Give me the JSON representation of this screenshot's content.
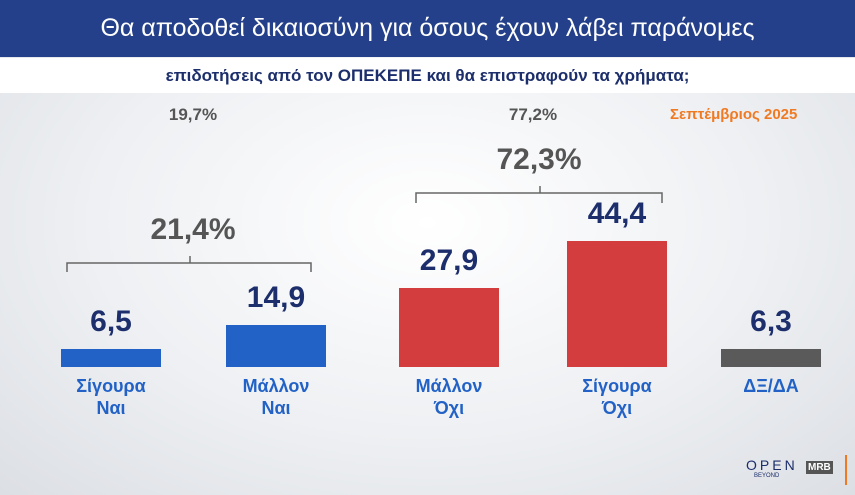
{
  "chart_data": {
    "type": "bar",
    "title": "Θα αποδοθεί δικαιοσύνη για όσους έχουν λάβει παράνομες",
    "subtitle": "επιδοτήσεις από τον ΟΠΕΚΕΠΕ και θα επιστραφούν τα χρήματα;",
    "date": "Σεπτέμβριος 2025",
    "categories": [
      "Σίγουρα Ναι",
      "Μάλλον Ναι",
      "Μάλλον Όχι",
      "Σίγουρα Όχι",
      "ΔΞ/ΔΑ"
    ],
    "values": [
      6.5,
      14.9,
      27.9,
      44.4,
      6.3
    ],
    "value_labels": [
      "6,5",
      "14,9",
      "27,9",
      "44,4",
      "6,3"
    ],
    "colors": [
      "#2262c6",
      "#2262c6",
      "#d33d3d",
      "#d33d3d",
      "#5a5a5a"
    ],
    "ylim": [
      0,
      50
    ],
    "annotations": [
      "19,7%",
      "77,2%",
      "21,4%",
      "72,3%"
    ],
    "logos": [
      "OPEN",
      "BEYOND",
      "MRB"
    ]
  }
}
